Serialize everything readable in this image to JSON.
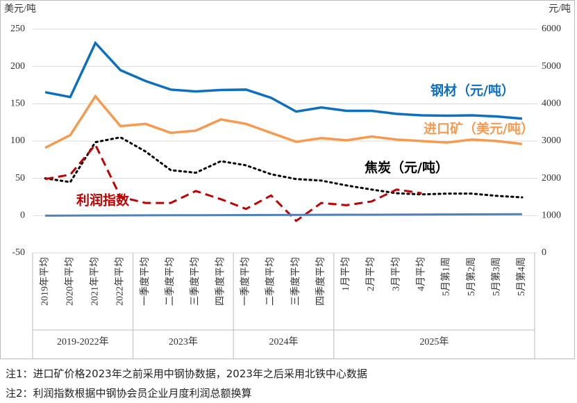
{
  "chart_data": {
    "type": "line",
    "y_unit": "美元/吨",
    "y2_unit": "元/吨",
    "categories": [
      "2019年平均",
      "2020年平均",
      "2021年平均",
      "2022年平均",
      "一季度平均",
      "二季度平均",
      "三季度平均",
      "四季度平均",
      "一季度平均",
      "二季度平均",
      "三季度平均",
      "四季度平均",
      "1月平均",
      "2月平均",
      "3月平均",
      "4月平均",
      "5月第1周",
      "5月第2周",
      "5月第3周",
      "5月第4周"
    ],
    "groups": [
      {
        "label": "2019-2022年",
        "count": 4
      },
      {
        "label": "2023年",
        "count": 4
      },
      {
        "label": "2024年",
        "count": 4
      },
      {
        "label": "2025年",
        "count": 8
      }
    ],
    "ylim": [
      -50,
      250
    ],
    "yticks": [
      -50,
      0,
      50,
      100,
      150,
      200,
      250
    ],
    "y2lim": [
      0,
      6000
    ],
    "y2ticks": [
      0,
      1000,
      2000,
      3000,
      4000,
      5000,
      6000
    ],
    "grid": true,
    "series": [
      {
        "name": "钢材（元/吨）",
        "color": "#0c6fc0",
        "axis": "y2",
        "style": "solid",
        "values": [
          4310,
          4180,
          5630,
          4900,
          4610,
          4380,
          4330,
          4370,
          4380,
          4160,
          3790,
          3900,
          3810,
          3810,
          3730,
          3690,
          3680,
          3690,
          3660,
          3600
        ]
      },
      {
        "name": "进口矿（美元/吨）",
        "color": "#f79a4f",
        "axis": "y",
        "style": "solid",
        "values": [
          91,
          108,
          160,
          120,
          123,
          111,
          114,
          129,
          123,
          111,
          99,
          104,
          101,
          106,
          102,
          100,
          98,
          102,
          100,
          96
        ]
      },
      {
        "name": "焦炭（元/吨）",
        "color": "#000000",
        "axis": "y2",
        "style": "dotted",
        "values": [
          2000,
          1900,
          2970,
          3100,
          2720,
          2220,
          2150,
          2460,
          2350,
          2110,
          1980,
          1940,
          1810,
          1700,
          1600,
          1570,
          1590,
          1590,
          1530,
          1490
        ]
      },
      {
        "name": "利润指数",
        "color": "#c00000",
        "axis": "y",
        "style": "dashed",
        "values": [
          49,
          55,
          95,
          25,
          17,
          17,
          33,
          22,
          9,
          27,
          -7,
          17,
          14,
          19,
          35,
          30,
          null,
          null,
          null,
          null
        ]
      },
      {
        "color": "#4f81bd",
        "axis": "y",
        "style": "solid",
        "values": [
          0,
          0.1,
          0.2,
          0.3,
          0.4,
          0.5,
          0.6,
          0.7,
          0.8,
          0.9,
          1,
          1.1,
          1.2,
          1.3,
          1.4,
          1.5,
          1.6,
          1.7,
          1.8,
          1.9
        ]
      }
    ],
    "notes": [
      "注1：进口矿价格2023年之前采用中钢协数据，2023年之后采用北铁中心数据",
      "注2：利润指数根据中钢协会员企业月度利润总额换算"
    ]
  }
}
